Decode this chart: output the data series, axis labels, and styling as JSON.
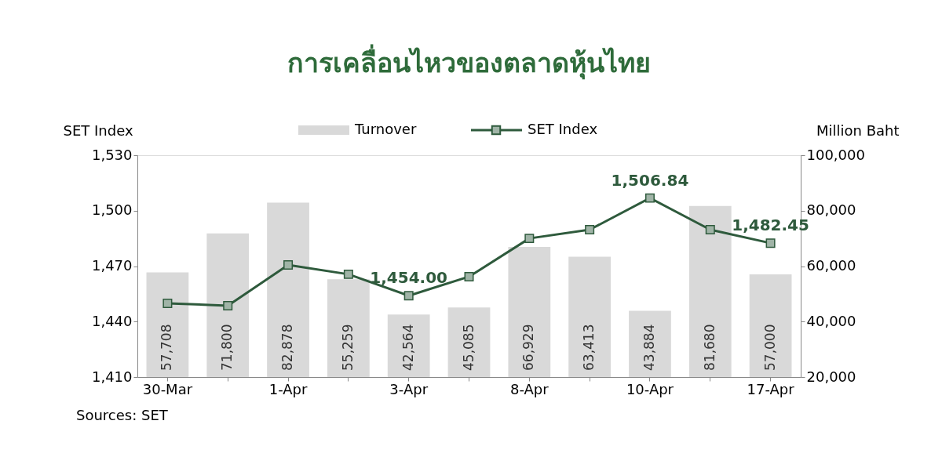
{
  "chart_data": {
    "type": "bar",
    "title": "การเคลื่อนไหวของตลาดหุ้นไทย",
    "categories": [
      "30-Mar",
      null,
      "1-Apr",
      null,
      "3-Apr",
      null,
      "8-Apr",
      null,
      "10-Apr",
      null,
      "17-Apr"
    ],
    "series": [
      {
        "name": "Turnover",
        "axis": "y2",
        "color": "#d9d9d9",
        "values": [
          57708,
          71800,
          82878,
          55259,
          42564,
          45085,
          66929,
          63413,
          43884,
          81680,
          57000
        ],
        "value_labels": [
          "57,708",
          "71,800",
          "82,878",
          "55,259",
          "42,564",
          "45,085",
          "66,929",
          "63,413",
          "43,884",
          "81,680",
          "57,000"
        ]
      },
      {
        "name": "SET Index",
        "type": "line",
        "axis": "y",
        "color": "#2e5a3c",
        "values": [
          1449.9,
          1448.6,
          1470.6,
          1465.6,
          1454.0,
          1464.3,
          1485.0,
          1489.7,
          1506.84,
          1489.7,
          1482.45
        ],
        "value_labels": [
          null,
          null,
          null,
          null,
          "1,454.00",
          null,
          null,
          null,
          "1,506.84",
          null,
          "1,482.45"
        ]
      }
    ],
    "ylabel": "SET Index",
    "y2label": "Million Baht",
    "ylim": [
      1410,
      1530
    ],
    "yticks": [
      {
        "value": 1410,
        "label": "1,410"
      },
      {
        "value": 1440,
        "label": "1,440"
      },
      {
        "value": 1470,
        "label": "1,470"
      },
      {
        "value": 1500,
        "label": "1,500"
      },
      {
        "value": 1530,
        "label": "1,530"
      }
    ],
    "y2lim": [
      20000,
      100000
    ],
    "y2ticks": [
      {
        "value": 20000,
        "label": "20,000"
      },
      {
        "value": 40000,
        "label": "40,000"
      },
      {
        "value": 60000,
        "label": "60,000"
      },
      {
        "value": 80000,
        "label": "80,000"
      },
      {
        "value": 100000,
        "label": "100,000"
      }
    ],
    "marker": "square",
    "line_style": "solid",
    "grid": false,
    "legend": "top",
    "annotations": [
      "Sources: SET"
    ]
  }
}
